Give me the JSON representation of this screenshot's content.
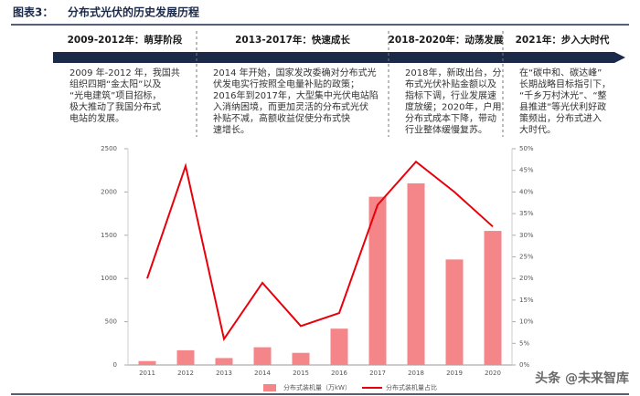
{
  "header": {
    "label": "图表3：",
    "title": "分布式光伏的历史发展历程"
  },
  "timeline": [
    {
      "period": "2009-2012年：萌芽阶段",
      "lines": [
        "2009 年-2012 年，我国共",
        "组织四期“金太阳”以及",
        "“光电建筑”项目招标，",
        "极大推动了我国分布式",
        "电站的发展。"
      ]
    },
    {
      "period": "2013-2017年：快速成长",
      "lines": [
        "2014 年开始，国家发改委确对分布式光",
        "伏发电实行按照全电量补贴的政策；",
        "2016年到2017年，大型集中光伏电站陷",
        "入消纳困境，而更加灵活的分布式光伏",
        "补贴不减，高额收益促使分布式快",
        "速增长。"
      ]
    },
    {
      "period": "2018-2020年：动荡发展",
      "lines": [
        "2018年，新政出台，分",
        "布式光伏补贴金额以及",
        "指标下调，行业发展速",
        "度放缓；2020年，户用",
        "分布式成本下降，带动",
        "行业整体缓慢复苏。"
      ]
    },
    {
      "period": "2021年：步入大时代",
      "lines": [
        "在“碳中和、碳达峰”",
        "长期战略目标指引下，",
        "“千乡万村沐光”、“整",
        "县推进”等光伏利好政",
        "策频出，分布式进入",
        "大时代。"
      ]
    }
  ],
  "watermark": "头条 @未来智库",
  "chart_data": {
    "type": "combo",
    "categories": [
      "2011",
      "2012",
      "2013",
      "2014",
      "2015",
      "2016",
      "2017",
      "2018",
      "2019",
      "2020"
    ],
    "series": [
      {
        "name": "分布式装机量（万kW）",
        "type": "bar",
        "color": "#f4868a",
        "values": [
          45,
          170,
          80,
          205,
          140,
          420,
          1945,
          2100,
          1220,
          1550
        ]
      },
      {
        "name": "分布式装机量占比",
        "type": "line",
        "axis": "y2",
        "color": "#e8000b",
        "values": [
          20,
          46,
          6,
          19,
          9,
          12,
          37,
          47,
          40,
          32
        ]
      }
    ],
    "ylim": [
      0,
      2500
    ],
    "yticks": [
      0,
      500,
      1000,
      1500,
      2000,
      2500
    ],
    "y2lim": [
      0,
      50
    ],
    "y2ticks": [
      {
        "value": 0,
        "label": "0%"
      },
      {
        "value": 5,
        "label": "5%"
      },
      {
        "value": 10,
        "label": "10%"
      },
      {
        "value": 15,
        "label": "15%"
      },
      {
        "value": 20,
        "label": "20%"
      },
      {
        "value": 25,
        "label": "25%"
      },
      {
        "value": 30,
        "label": "30%"
      },
      {
        "value": 35,
        "label": "35%"
      },
      {
        "value": 40,
        "label": "40%"
      },
      {
        "value": 45,
        "label": "45%"
      },
      {
        "value": 50,
        "label": "50%"
      }
    ],
    "legend": "bottom"
  }
}
